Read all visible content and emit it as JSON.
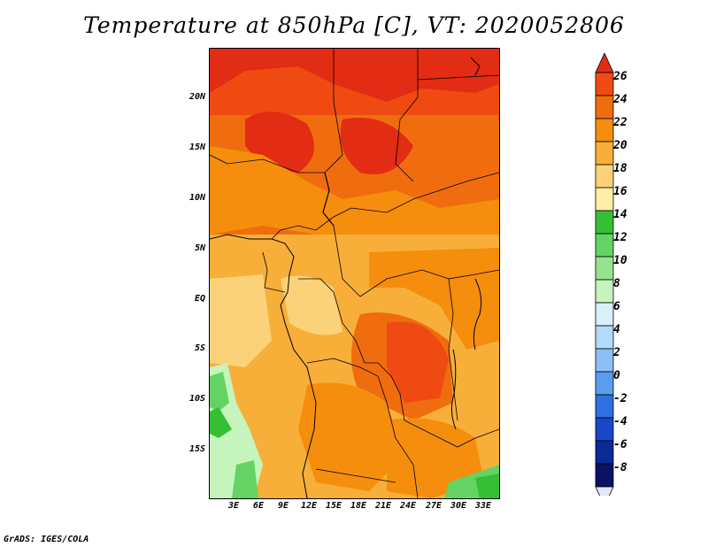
{
  "title": "Temperature at 850hPa [C], VT: 2020052806",
  "credit": "GrADS: IGES/COLA",
  "lat_labels": [
    "20N",
    "15N",
    "10N",
    "5N",
    "EQ",
    "5S",
    "10S",
    "15S"
  ],
  "lon_labels": [
    "3E",
    "6E",
    "9E",
    "12E",
    "15E",
    "18E",
    "21E",
    "24E",
    "27E",
    "30E",
    "33E"
  ],
  "colorbar": {
    "labels": [
      "26",
      "24",
      "22",
      "20",
      "18",
      "16",
      "14",
      "12",
      "10",
      "8",
      "6",
      "4",
      "2",
      "0",
      "-2",
      "-4",
      "-6",
      "-8"
    ],
    "colors": [
      "#e32c14",
      "#ef4a12",
      "#f06d0f",
      "#f58e0c",
      "#f7af3a",
      "#fbd27a",
      "#fdeea8",
      "#36bf36",
      "#64d364",
      "#96e38f",
      "#c5f4bd",
      "#d7f0fa",
      "#b4dafa",
      "#8cc0f5",
      "#5a9def",
      "#2f70e2",
      "#1848c8",
      "#0a2a96",
      "#0b1163",
      "#e6e6fa"
    ]
  }
}
